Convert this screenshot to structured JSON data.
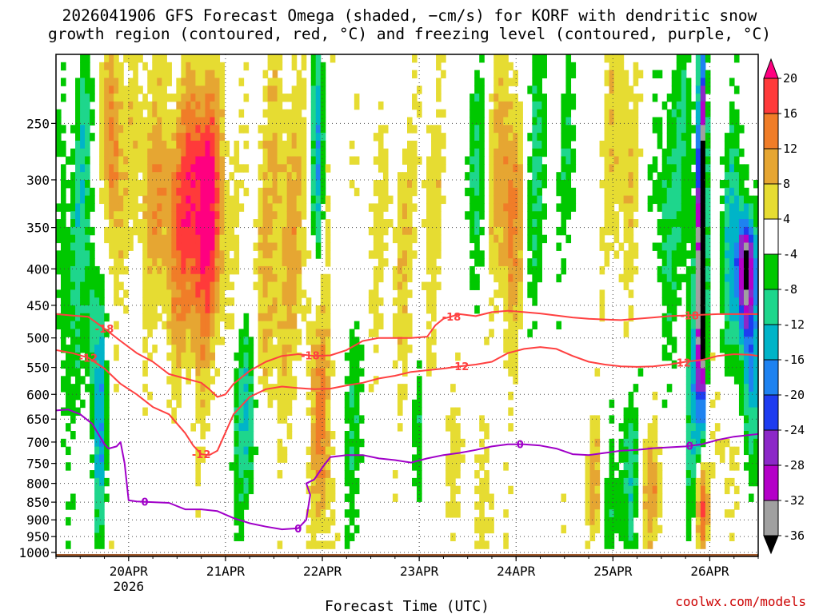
{
  "chart_data": {
    "type": "heatmap",
    "title_lines": [
      "2026041906 GFS Forecast Omega (shaded, −cm/s) for KORF with dendritic snow",
      "growth region (contoured, red, °C) and freezing level (contoured, purple, °C)"
    ],
    "xlabel": "Forecast Time (UTC)",
    "ylabel": "",
    "x_range_hours": [
      0,
      174
    ],
    "x_ticks": [
      {
        "label": "20APR",
        "sublabel": "2026",
        "hour": 18
      },
      {
        "label": "21APR",
        "sublabel": "",
        "hour": 42
      },
      {
        "label": "22APR",
        "sublabel": "",
        "hour": 66
      },
      {
        "label": "23APR",
        "sublabel": "",
        "hour": 90
      },
      {
        "label": "24APR",
        "sublabel": "",
        "hour": 114
      },
      {
        "label": "25APR",
        "sublabel": "",
        "hour": 138
      },
      {
        "label": "26APR",
        "sublabel": "",
        "hour": 162
      }
    ],
    "y_ticks_hpa": [
      250,
      300,
      350,
      400,
      450,
      500,
      550,
      600,
      650,
      700,
      750,
      800,
      850,
      900,
      950,
      1000
    ],
    "y_range_hpa": [
      200,
      1013
    ],
    "colorbar": {
      "levels": [
        20,
        16,
        12,
        8,
        4,
        -4,
        -8,
        -12,
        -16,
        -20,
        -24,
        -28,
        -32,
        -36
      ],
      "colors": [
        "#ff0080",
        "#ff3a3a",
        "#f07d28",
        "#e6a632",
        "#e6dc32",
        "#ffffff",
        "#00c800",
        "#1ed68c",
        "#00b4c8",
        "#1e82f0",
        "#1e3cf0",
        "#8c28c8",
        "#b400c8",
        "#a0a0a0",
        "#000000"
      ]
    },
    "series": [
      {
        "name": "-18 °C (dendritic growth upper)",
        "color": "#ff4040",
        "label": "-18",
        "x": [
          0,
          4,
          8,
          12,
          16,
          20,
          24,
          28,
          32,
          36,
          38,
          40,
          42,
          44,
          48,
          52,
          56,
          60,
          64,
          68,
          72,
          76,
          80,
          84,
          88,
          92,
          94,
          96,
          100,
          104,
          108,
          112,
          116,
          120,
          124,
          128,
          132,
          136,
          140,
          144,
          148,
          152,
          156,
          160,
          164,
          168,
          172,
          174
        ],
        "p": [
          463,
          465,
          467,
          485,
          505,
          525,
          540,
          562,
          570,
          578,
          590,
          605,
          600,
          580,
          556,
          540,
          530,
          527,
          530,
          529,
          520,
          505,
          500,
          500,
          500,
          498,
          480,
          470,
          463,
          466,
          460,
          458,
          460,
          462,
          465,
          468,
          470,
          471,
          472,
          470,
          468,
          466,
          465,
          464,
          463,
          463,
          463,
          463
        ]
      },
      {
        "name": "-12 °C (dendritic growth lower)",
        "color": "#ff4040",
        "label": "-12",
        "x": [
          0,
          4,
          8,
          12,
          16,
          20,
          24,
          28,
          32,
          34,
          36,
          38,
          40,
          44,
          48,
          52,
          56,
          60,
          64,
          68,
          72,
          76,
          80,
          84,
          88,
          92,
          96,
          100,
          104,
          108,
          112,
          116,
          120,
          124,
          128,
          132,
          136,
          140,
          144,
          148,
          152,
          156,
          160,
          164,
          168,
          172,
          174
        ],
        "p": [
          520,
          525,
          533,
          552,
          580,
          600,
          625,
          640,
          680,
          708,
          728,
          730,
          720,
          640,
          605,
          590,
          585,
          588,
          590,
          589,
          583,
          578,
          570,
          565,
          558,
          555,
          552,
          548,
          545,
          540,
          525,
          518,
          515,
          518,
          530,
          540,
          545,
          548,
          549,
          548,
          545,
          540,
          537,
          530,
          527,
          528,
          530
        ]
      },
      {
        "name": "0 °C (freezing level)",
        "color": "#a000c8",
        "label": "0",
        "x": [
          0,
          3,
          6,
          9,
          12,
          13,
          15,
          16,
          17,
          18,
          20,
          24,
          28,
          32,
          36,
          40,
          44,
          48,
          52,
          56,
          60,
          62,
          63,
          62,
          64,
          66,
          68,
          72,
          76,
          80,
          84,
          88,
          92,
          96,
          100,
          104,
          108,
          112,
          116,
          120,
          124,
          128,
          132,
          136,
          140,
          144,
          148,
          152,
          156,
          160,
          164,
          168,
          172,
          174
        ],
        "p": [
          632,
          630,
          640,
          660,
          705,
          715,
          710,
          700,
          750,
          845,
          848,
          850,
          852,
          870,
          870,
          875,
          895,
          910,
          920,
          928,
          925,
          900,
          830,
          800,
          790,
          760,
          735,
          730,
          730,
          738,
          742,
          748,
          738,
          730,
          725,
          718,
          710,
          705,
          705,
          708,
          715,
          728,
          730,
          725,
          720,
          718,
          714,
          712,
          710,
          705,
          695,
          688,
          684,
          682
        ]
      }
    ]
  },
  "credit": "coolwx.com/models"
}
